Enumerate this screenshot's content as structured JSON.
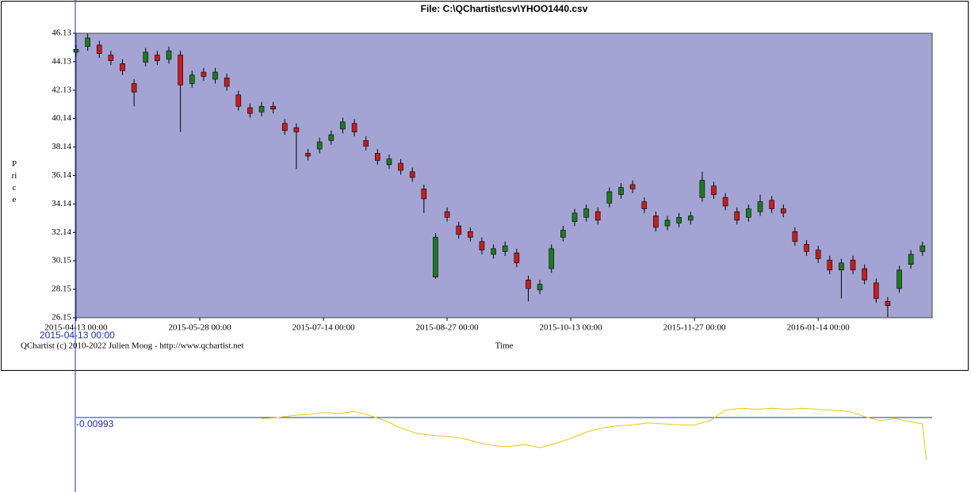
{
  "chart_data": [
    {
      "type": "candlestick",
      "title": "File: C:\\QChartist\\csv\\YHOO1440.csv",
      "ylabel": "Price",
      "xlabel": "Time",
      "credit": "QChartist (c) 2010-2022 Julien Moog - http://www.qchartist.net",
      "background": "#a4a4d4",
      "up_color": "#1f7a1f",
      "down_color": "#c41e1e",
      "xlim": [
        0,
        221.5
      ],
      "ylim": [
        26.15,
        46.13
      ],
      "xticks": [
        {
          "value": 0,
          "label": "2015-04-13 00:00"
        },
        {
          "value": 32,
          "label": "2015-05-28 00:00"
        },
        {
          "value": 64,
          "label": "2015-07-14 00:00"
        },
        {
          "value": 96,
          "label": "2015-08-27 00:00"
        },
        {
          "value": 128,
          "label": "2015-10-13 00:00"
        },
        {
          "value": 160,
          "label": "2015-11-27 00:00"
        },
        {
          "value": 192,
          "label": "2016-01-14 00:00"
        }
      ],
      "yticks": [
        46.13,
        44.13,
        42.13,
        40.14,
        38.14,
        36.14,
        34.14,
        32.14,
        30.15,
        28.15,
        26.15
      ],
      "x": [
        0,
        3,
        6,
        9,
        12,
        15,
        18,
        21,
        24,
        27,
        30,
        33,
        36,
        39,
        42,
        45,
        48,
        51,
        54,
        57,
        60,
        63,
        66,
        69,
        72,
        75,
        78,
        81,
        84,
        87,
        90,
        93,
        96,
        99,
        102,
        105,
        108,
        111,
        114,
        117,
        120,
        123,
        126,
        129,
        132,
        135,
        138,
        141,
        144,
        147,
        150,
        153,
        156,
        159,
        162,
        165,
        168,
        171,
        174,
        177,
        180,
        183,
        186,
        189,
        192,
        195,
        198,
        201,
        204,
        207,
        210,
        213,
        216,
        219
      ],
      "open": [
        44.8,
        45.2,
        45.3,
        44.6,
        44.0,
        42.6,
        44.1,
        44.6,
        44.3,
        44.6,
        42.6,
        43.4,
        42.9,
        43.0,
        41.8,
        40.9,
        40.6,
        41.0,
        39.8,
        39.5,
        37.7,
        38.0,
        38.6,
        39.4,
        39.8,
        38.6,
        37.7,
        36.9,
        37.0,
        36.4,
        35.2,
        29.0,
        33.6,
        32.6,
        32.2,
        31.5,
        30.6,
        30.8,
        30.7,
        28.8,
        28.1,
        29.6,
        31.8,
        32.9,
        33.2,
        33.6,
        34.2,
        34.8,
        35.5,
        34.3,
        33.3,
        32.6,
        32.8,
        33.0,
        34.6,
        35.4,
        34.6,
        33.6,
        33.2,
        33.6,
        34.4,
        33.8,
        32.2,
        31.3,
        30.9,
        30.2,
        29.5,
        30.2,
        29.6,
        28.6,
        27.3,
        28.2,
        29.9,
        30.8
      ],
      "high": [
        45.3,
        46.1,
        45.6,
        44.9,
        44.3,
        42.9,
        45.1,
        44.9,
        45.2,
        44.9,
        43.5,
        43.7,
        43.7,
        43.3,
        42.1,
        41.2,
        41.3,
        41.3,
        40.1,
        39.8,
        38.0,
        38.8,
        39.3,
        40.2,
        40.1,
        38.9,
        38.0,
        37.6,
        37.3,
        36.7,
        35.5,
        32.1,
        33.9,
        32.9,
        32.5,
        31.8,
        31.3,
        31.5,
        31.0,
        29.1,
        28.8,
        31.3,
        32.6,
        33.8,
        34.1,
        33.9,
        35.3,
        35.6,
        35.8,
        34.6,
        33.6,
        33.3,
        33.5,
        33.6,
        36.4,
        35.7,
        34.9,
        33.9,
        34.1,
        34.8,
        34.7,
        34.1,
        32.5,
        31.6,
        31.2,
        30.5,
        30.3,
        30.5,
        29.9,
        28.9,
        27.6,
        29.8,
        30.9,
        31.5
      ],
      "low": [
        44.5,
        44.9,
        44.4,
        43.9,
        43.2,
        41.0,
        43.8,
        43.9,
        44.0,
        39.2,
        42.3,
        42.8,
        42.6,
        42.1,
        40.7,
        40.2,
        40.3,
        40.5,
        39.0,
        36.6,
        37.2,
        37.7,
        38.3,
        39.1,
        38.9,
        37.9,
        36.9,
        36.6,
        36.2,
        35.7,
        33.5,
        28.9,
        32.9,
        31.7,
        31.5,
        30.6,
        30.3,
        30.5,
        29.7,
        27.3,
        27.8,
        29.3,
        31.5,
        32.6,
        32.9,
        32.7,
        33.9,
        34.5,
        34.9,
        33.5,
        32.2,
        32.3,
        32.5,
        32.7,
        34.3,
        34.5,
        33.7,
        32.7,
        32.9,
        33.3,
        33.5,
        33.2,
        31.2,
        30.5,
        30.0,
        29.2,
        27.5,
        29.2,
        28.5,
        27.2,
        26.2,
        27.9,
        29.6,
        30.5
      ],
      "close": [
        45.0,
        45.8,
        44.7,
        44.2,
        43.5,
        42.0,
        44.8,
        44.2,
        44.9,
        42.5,
        43.2,
        43.1,
        43.4,
        42.4,
        41.0,
        40.5,
        41.0,
        40.8,
        39.3,
        39.2,
        37.5,
        38.5,
        39.0,
        39.9,
        39.2,
        38.2,
        37.2,
        37.3,
        36.5,
        36.0,
        34.5,
        31.8,
        33.2,
        32.0,
        31.8,
        30.9,
        31.0,
        31.2,
        30.0,
        28.2,
        28.5,
        31.0,
        32.3,
        33.5,
        33.8,
        33.0,
        35.0,
        35.3,
        35.2,
        33.8,
        32.5,
        33.0,
        33.2,
        33.3,
        35.8,
        34.8,
        34.0,
        33.0,
        33.8,
        34.3,
        33.8,
        33.5,
        31.5,
        30.8,
        30.3,
        29.5,
        30.0,
        29.5,
        28.8,
        27.5,
        27.0,
        29.5,
        30.6,
        31.2
      ]
    },
    {
      "type": "line",
      "crosshair_label": "2015-04-13 00:00",
      "reference_value": -0.00993,
      "reference_color": "#1c2fb0",
      "color": "#f0c800",
      "xlim": [
        0,
        221.5
      ],
      "ylim": [
        -0.045,
        0.0
      ],
      "x": [
        48,
        52,
        56,
        60,
        64,
        68,
        72,
        76,
        80,
        84,
        88,
        92,
        96,
        100,
        104,
        108,
        112,
        116,
        120,
        124,
        128,
        132,
        136,
        140,
        144,
        148,
        152,
        156,
        160,
        164,
        166,
        168,
        172,
        176,
        180,
        184,
        188,
        192,
        196,
        200,
        204,
        208,
        212,
        216,
        219,
        220
      ],
      "values": [
        -0.011,
        -0.01,
        -0.008,
        -0.007,
        -0.005,
        -0.006,
        -0.004,
        -0.008,
        -0.013,
        -0.02,
        -0.025,
        -0.027,
        -0.028,
        -0.03,
        -0.034,
        -0.037,
        -0.038,
        -0.036,
        -0.039,
        -0.035,
        -0.03,
        -0.024,
        -0.02,
        -0.018,
        -0.017,
        -0.015,
        -0.016,
        -0.017,
        -0.017,
        -0.013,
        -0.008,
        -0.003,
        -0.001,
        -0.002,
        -0.001,
        -0.002,
        -0.001,
        -0.002,
        -0.003,
        -0.004,
        -0.009,
        -0.013,
        -0.011,
        -0.014,
        -0.016,
        -0.051
      ]
    }
  ]
}
